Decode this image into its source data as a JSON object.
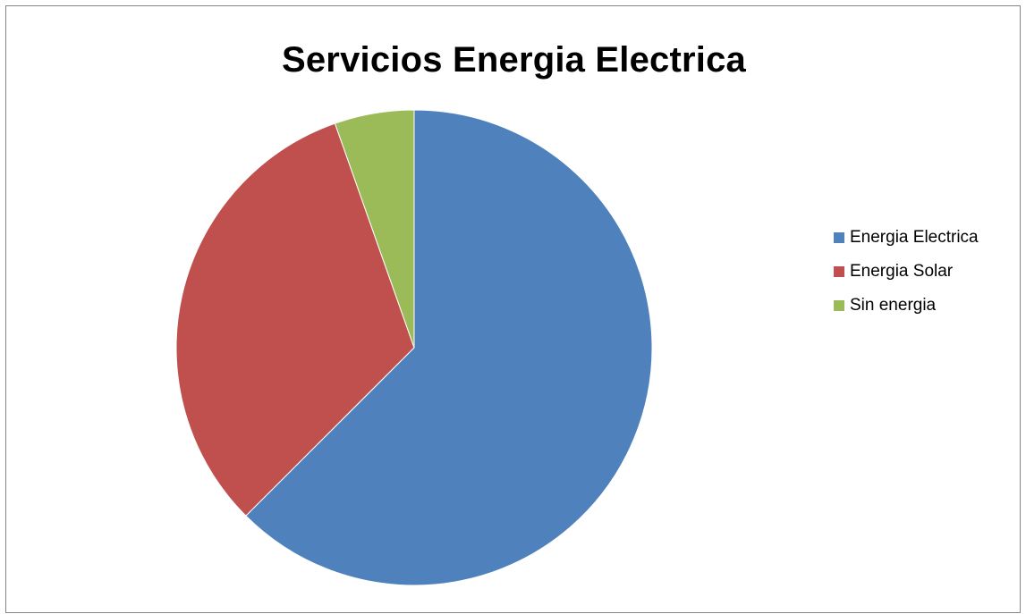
{
  "chart_data": {
    "type": "pie",
    "title": "Servicios Energia Electrica",
    "categories": [
      "Energia Electrica",
      "Energia Solar",
      "Sin energia"
    ],
    "values": [
      62.5,
      32.1,
      5.4
    ],
    "colors": [
      "#4F81BD",
      "#C0504D",
      "#9BBB59"
    ],
    "start_angle_deg": 0,
    "direction": "clockwise",
    "legend": "right"
  }
}
